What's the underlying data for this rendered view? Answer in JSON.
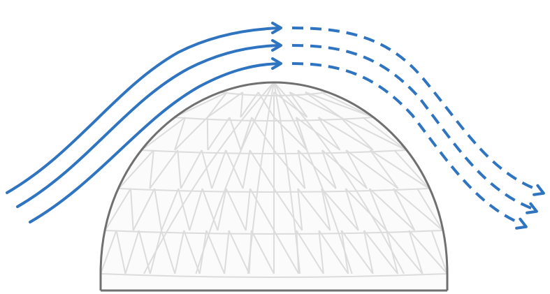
{
  "colors": {
    "background": "#ffffff",
    "flow": "#2e74c0",
    "dome_outline": "#707070",
    "dome_lattice": "#dcdcdc"
  },
  "diagram": {
    "flow_line_count": 3,
    "segments": [
      "solid-upwind",
      "dashed-downwind"
    ],
    "dome_lattice": "geodesic"
  }
}
